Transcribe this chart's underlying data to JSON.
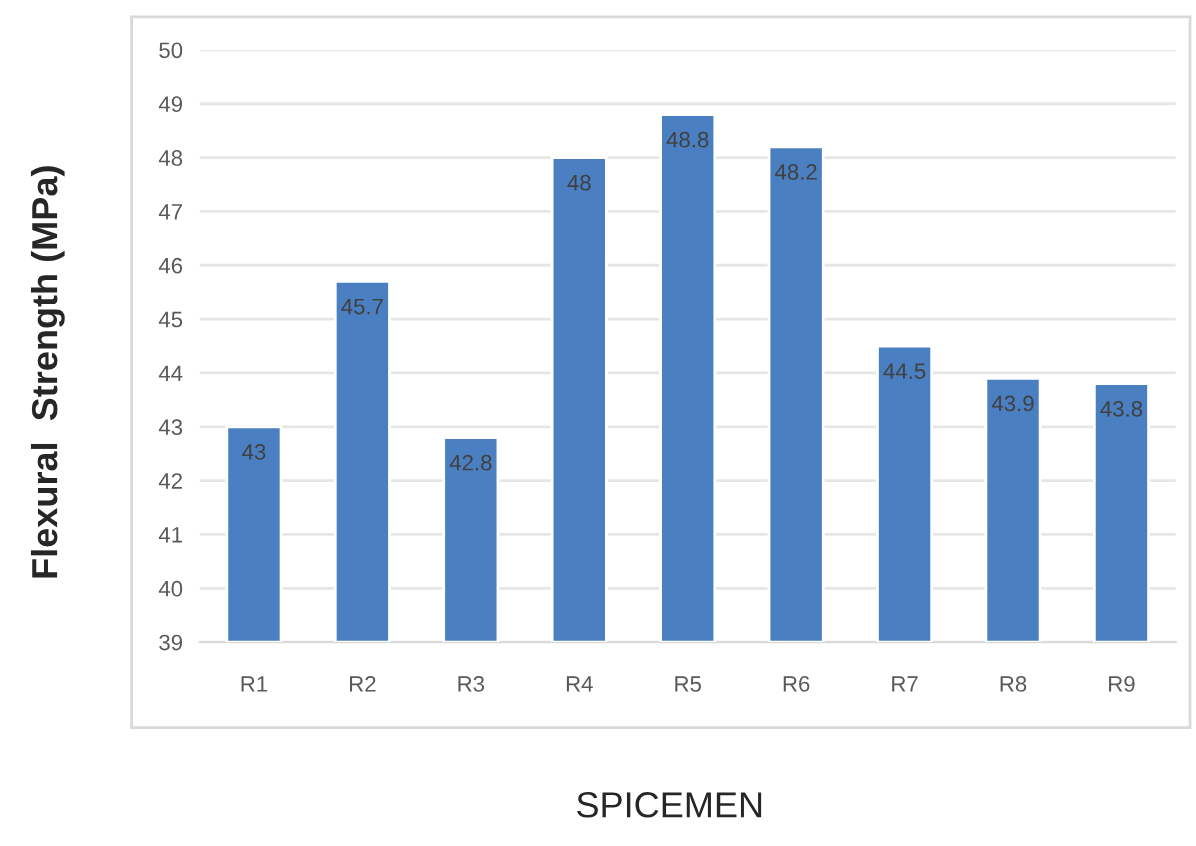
{
  "chart_data": {
    "type": "bar",
    "xlabel": "SPICEMEN",
    "ylabel": "Flexural  Strength (MPa)",
    "categories": [
      "R1",
      "R2",
      "R3",
      "R4",
      "R5",
      "R6",
      "R7",
      "R8",
      "R9"
    ],
    "values": [
      43,
      45.7,
      42.8,
      48,
      48.8,
      48.2,
      44.5,
      43.9,
      43.8
    ],
    "color": "#4a7fc1",
    "ylim": [
      39,
      50
    ],
    "yticks": [
      39,
      40,
      41,
      42,
      43,
      44,
      45,
      46,
      47,
      48,
      49,
      50
    ],
    "grid": "y",
    "data_labels": true
  }
}
